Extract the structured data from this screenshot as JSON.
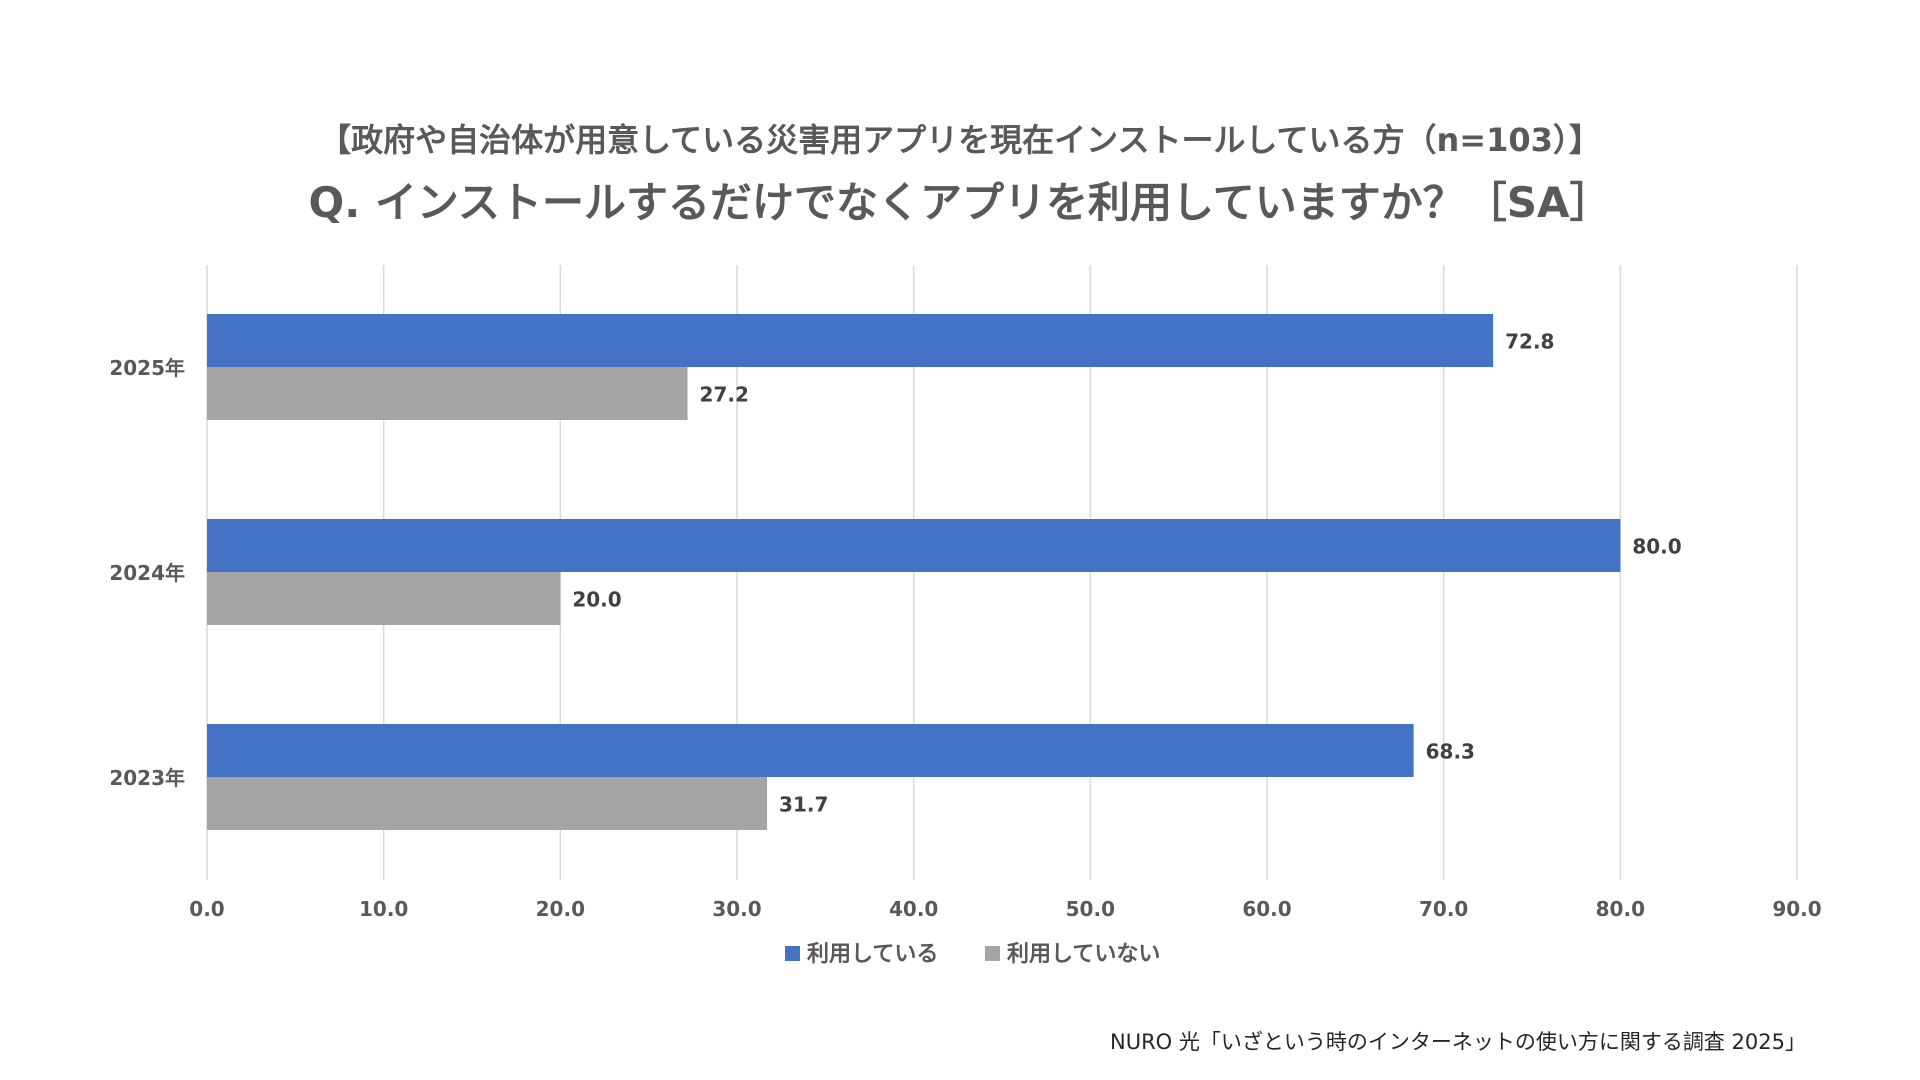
{
  "subtitle": "【政府や自治体が用意している災害用アプリを現在インストールしている方（n=103）】",
  "title": "Q. インストールするだけでなくアプリを利用していますか？［SA］",
  "source": "NURO 光「いざという時のインターネットの使い方に関する調査 2025」",
  "chart_data": {
    "type": "bar",
    "orientation": "horizontal",
    "categories": [
      "2025年",
      "2024年",
      "2023年"
    ],
    "series": [
      {
        "name": "利用している",
        "values": [
          72.8,
          80.0,
          68.3
        ],
        "color": "#4472C4"
      },
      {
        "name": "利用していない",
        "values": [
          27.2,
          20.0,
          31.7
        ],
        "color": "#A5A5A5"
      }
    ],
    "data_labels": [
      [
        "72.8",
        "80.0",
        "68.3"
      ],
      [
        "27.2",
        "20.0",
        "31.7"
      ]
    ],
    "xlim": [
      0,
      90
    ],
    "x_ticks": [
      0,
      10,
      20,
      30,
      40,
      50,
      60,
      70,
      80,
      90
    ],
    "x_tick_labels": [
      "0.0",
      "10.0",
      "20.0",
      "30.0",
      "40.0",
      "50.0",
      "60.0",
      "70.0",
      "80.0",
      "90.0"
    ],
    "grid": true,
    "legend_position": "bottom-center",
    "xlabel": "",
    "ylabel": ""
  }
}
